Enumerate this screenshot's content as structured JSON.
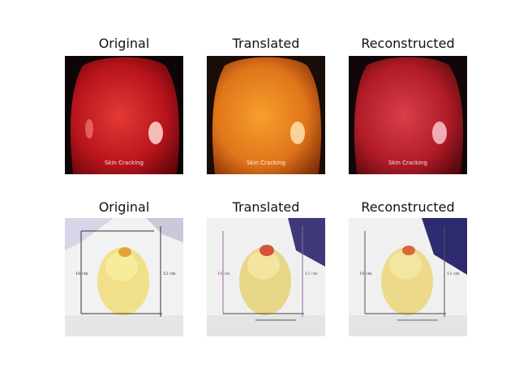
{
  "rows": [
    {
      "subject": "red apple skin close-up",
      "titles": [
        "Original",
        "Translated",
        "Reconstructed"
      ],
      "caption": "Skin Cracking"
    },
    {
      "subject": "peeled yellow fruit with measurement lines",
      "titles": [
        "Original",
        "Translated",
        "Reconstructed"
      ],
      "measures": [
        "10 cm",
        "12 cm"
      ]
    }
  ],
  "colors": {
    "apple_red": "#b8141c",
    "translated_orange": "#e0741a",
    "reconstructed_red": "#b01b26",
    "peel_yellow": "#f0e08a",
    "background": "#ffffff"
  }
}
